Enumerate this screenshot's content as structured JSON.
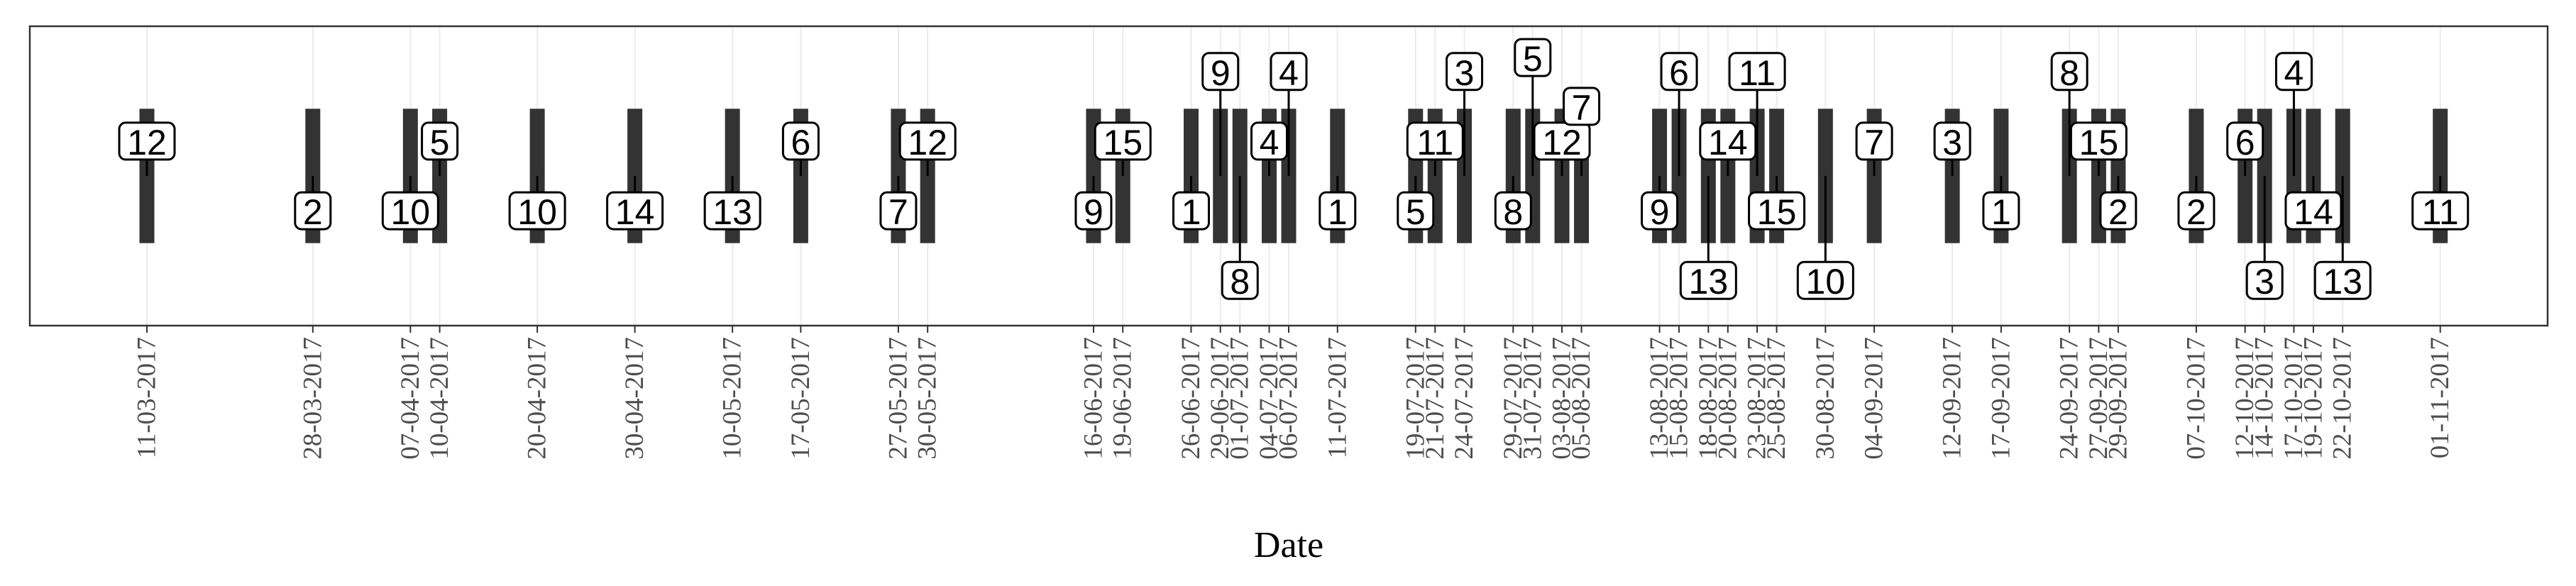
{
  "chart_data": {
    "type": "timeline",
    "x_label": "Date",
    "x": [
      "11-03-2017",
      "28-03-2017",
      "07-04-2017",
      "10-04-2017",
      "20-04-2017",
      "30-04-2017",
      "10-05-2017",
      "17-05-2017",
      "27-05-2017",
      "30-05-2017",
      "16-06-2017",
      "19-06-2017",
      "26-06-2017",
      "29-06-2017",
      "01-07-2017",
      "04-07-2017",
      "06-07-2017",
      "11-07-2017",
      "19-07-2017",
      "21-07-2017",
      "24-07-2017",
      "29-07-2017",
      "31-07-2017",
      "03-08-2017",
      "05-08-2017",
      "13-08-2017",
      "15-08-2017",
      "18-08-2017",
      "20-08-2017",
      "23-08-2017",
      "25-08-2017",
      "30-08-2017",
      "04-09-2017",
      "12-09-2017",
      "17-09-2017",
      "24-09-2017",
      "27-09-2017",
      "29-09-2017",
      "07-10-2017",
      "12-10-2017",
      "14-10-2017",
      "17-10-2017",
      "19-10-2017",
      "22-10-2017",
      "01-11-2017"
    ],
    "labels": [
      12,
      2,
      10,
      5,
      10,
      14,
      13,
      6,
      7,
      12,
      9,
      15,
      1,
      9,
      8,
      4,
      4,
      1,
      5,
      11,
      3,
      8,
      5,
      12,
      7,
      9,
      6,
      13,
      14,
      11,
      15,
      10,
      7,
      3,
      1,
      8,
      15,
      2,
      2,
      6,
      3,
      4,
      14,
      13,
      11
    ],
    "values": [
      1,
      -1,
      -1,
      1,
      -1,
      -1,
      -1,
      1,
      -1,
      1,
      -1,
      1,
      -1,
      3,
      -3,
      1,
      3,
      -1,
      -1,
      1,
      3,
      -1,
      3.4,
      1,
      2,
      -1,
      3,
      -3,
      1,
      3,
      -1,
      -3,
      1,
      1,
      -1,
      3,
      1,
      -1,
      -1,
      1,
      -3,
      3,
      -1,
      -3,
      -1
    ],
    "xlim": [
      "27-02-2017",
      "12-11-2017"
    ],
    "ylim": [
      -4.3,
      4.3
    ],
    "bar_color": "#333333",
    "grid": true
  }
}
